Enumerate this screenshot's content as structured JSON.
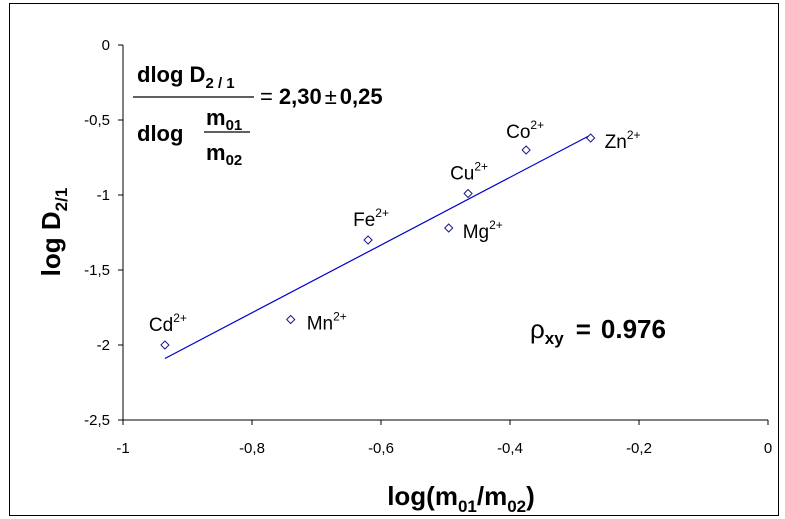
{
  "chart_data": {
    "type": "scatter",
    "xlabel": {
      "base": "log(m",
      "sub1": "01",
      "mid": "/m",
      "sub2": "02",
      "end": ")"
    },
    "ylabel": {
      "base": "log D",
      "sub": "2/1"
    },
    "xlim": [
      -1,
      0
    ],
    "ylim": [
      -2.5,
      0
    ],
    "x_ticks": [
      "-1",
      "-0,8",
      "-0,6",
      "-0,4",
      "-0,2",
      "0"
    ],
    "y_ticks": [
      "0",
      "-0,5",
      "-1",
      "-1,5",
      "-2",
      "-2,5"
    ],
    "grid": false,
    "points": [
      {
        "label": "Cd",
        "charge": "2+",
        "x": -0.935,
        "y": -2.0
      },
      {
        "label": "Mn",
        "charge": "2+",
        "x": -0.74,
        "y": -1.83
      },
      {
        "label": "Fe",
        "charge": "2+",
        "x": -0.62,
        "y": -1.3
      },
      {
        "label": "Mg",
        "charge": "2+",
        "x": -0.495,
        "y": -1.22
      },
      {
        "label": "Cu",
        "charge": "2+",
        "x": -0.465,
        "y": -0.99
      },
      {
        "label": "Co",
        "charge": "2+",
        "x": -0.375,
        "y": -0.7
      },
      {
        "label": "Zn",
        "charge": "2+",
        "x": -0.275,
        "y": -0.62
      }
    ],
    "fit_line": {
      "x1": -0.935,
      "y1": -2.09,
      "x2": -0.275,
      "y2": -0.6,
      "color": "#0000cc"
    },
    "marker_color": "#1a1a8c",
    "annotations": {
      "formula": {
        "num_base": "dlog D",
        "num_sub": "2 / 1",
        "den_base": "dlog",
        "den_frac_num_base": "m",
        "den_frac_num_sub": "01",
        "den_frac_den_base": "m",
        "den_frac_den_sub": "02",
        "equals": "=",
        "value": "2,30",
        "pm": "±",
        "error": "0,25"
      },
      "correlation": {
        "symbol": "ρ",
        "sub": "xy",
        "eq": "=",
        "value": "0.976"
      }
    }
  }
}
